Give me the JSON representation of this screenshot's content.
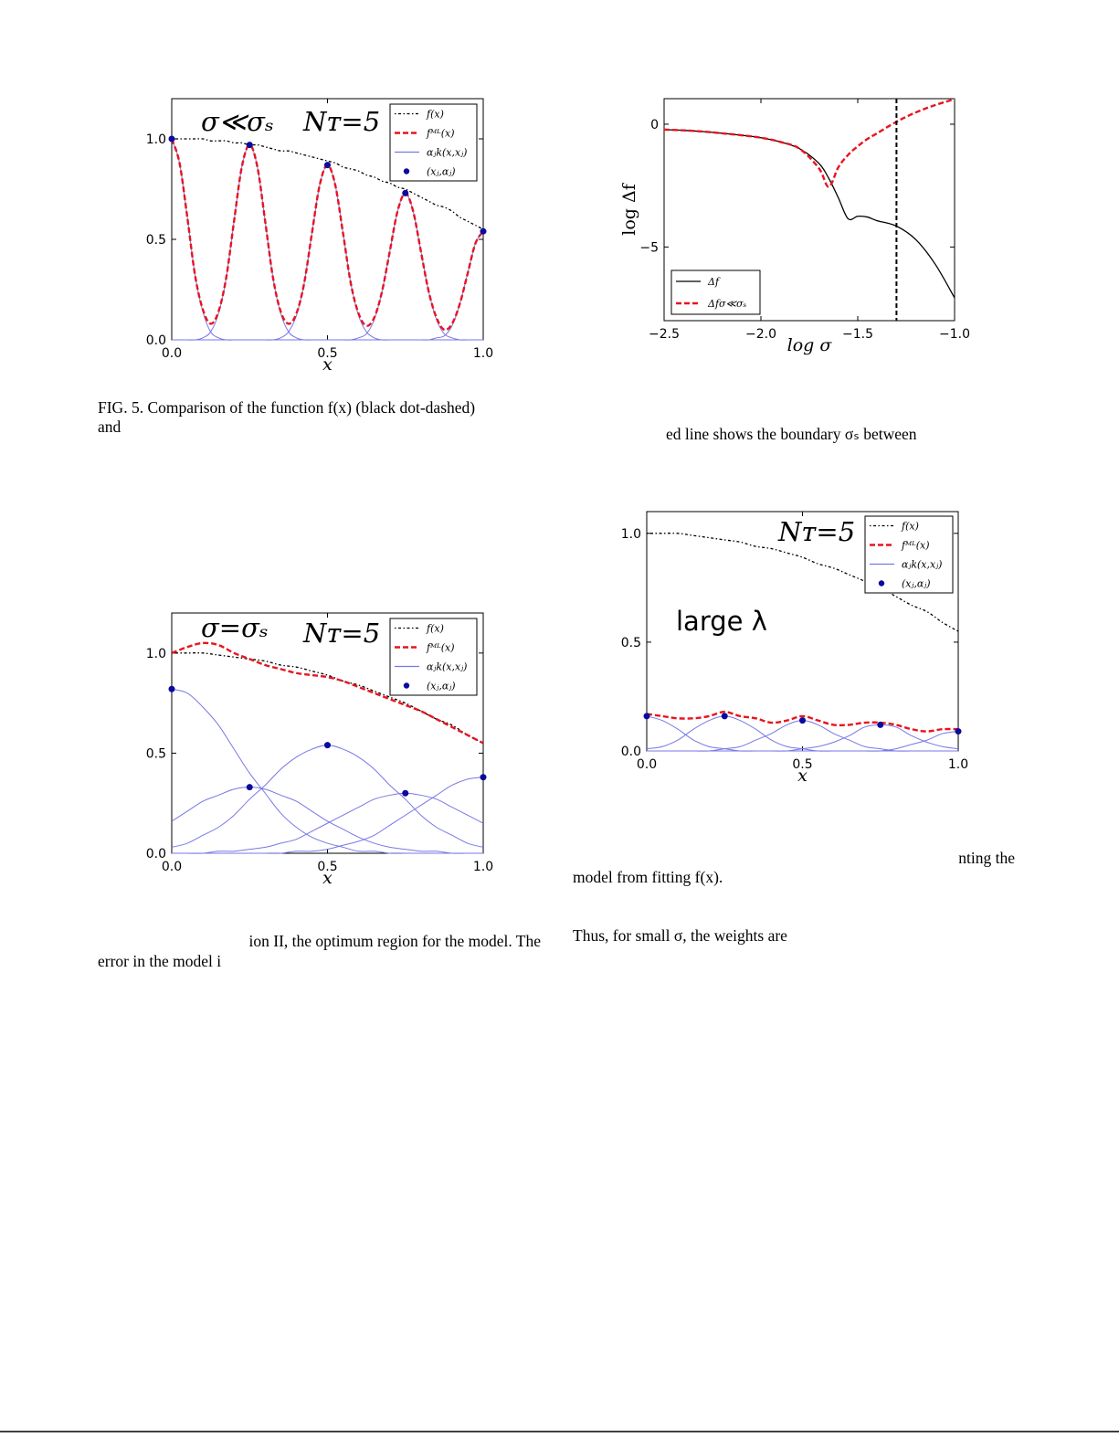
{
  "chart_data": [
    {
      "type": "line",
      "xlabel": "x",
      "xlim": [
        0,
        1
      ],
      "ylim": [
        0,
        1.2
      ],
      "xticks": [
        {
          "value": 0,
          "label": "0.0"
        },
        {
          "value": 0.5,
          "label": "0.5"
        },
        {
          "value": 1,
          "label": "1.0"
        }
      ],
      "yticks": [
        {
          "value": 0,
          "label": "0.0"
        },
        {
          "value": 0.5,
          "label": "0.5"
        },
        {
          "value": 1,
          "label": "1.0"
        }
      ],
      "annotations": [
        "σ≪σₛ",
        "Nᴛ=5"
      ],
      "legend": "upper right",
      "x": [
        0,
        0.025,
        0.05,
        0.075,
        0.1,
        0.125,
        0.15,
        0.175,
        0.2,
        0.225,
        0.25,
        0.275,
        0.3,
        0.325,
        0.35,
        0.375,
        0.4,
        0.425,
        0.45,
        0.475,
        0.5,
        0.525,
        0.55,
        0.575,
        0.6,
        0.625,
        0.65,
        0.675,
        0.7,
        0.725,
        0.75,
        0.775,
        0.8,
        0.825,
        0.85,
        0.875,
        0.9,
        0.925,
        0.95,
        0.975,
        1
      ],
      "series": [
        {
          "name": "f(x)",
          "color": "#000000",
          "style": "dotted",
          "values": [
            1,
            1,
            1,
            1,
            1,
            0.99,
            0.99,
            0.99,
            0.98,
            0.98,
            0.97,
            0.97,
            0.96,
            0.95,
            0.94,
            0.94,
            0.93,
            0.92,
            0.91,
            0.9,
            0.89,
            0.88,
            0.86,
            0.85,
            0.84,
            0.82,
            0.81,
            0.79,
            0.78,
            0.76,
            0.75,
            0.73,
            0.71,
            0.69,
            0.67,
            0.66,
            0.64,
            0.61,
            0.59,
            0.57,
            0.55
          ]
        },
        {
          "name": "fᴹᴸ(x)",
          "color": "#e8141e",
          "style": "dashed",
          "values": [
            1,
            0.88,
            0.61,
            0.32,
            0.15,
            0.08,
            0.14,
            0.31,
            0.59,
            0.86,
            0.97,
            0.86,
            0.59,
            0.31,
            0.14,
            0.08,
            0.13,
            0.28,
            0.53,
            0.77,
            0.87,
            0.77,
            0.53,
            0.28,
            0.13,
            0.07,
            0.11,
            0.24,
            0.44,
            0.64,
            0.73,
            0.64,
            0.44,
            0.24,
            0.11,
            0.05,
            0.08,
            0.18,
            0.33,
            0.48,
            0.54
          ]
        },
        {
          "name": "αⱼk(x,xⱼ)",
          "color": "#7777e6",
          "style": "solid",
          "curves": [
            [
              1,
              0.88,
              0.61,
              0.32,
              0.14,
              0.04,
              0.01,
              0,
              0,
              0,
              0,
              0,
              0,
              0,
              0,
              0,
              0,
              0,
              0,
              0,
              0,
              0,
              0,
              0,
              0,
              0,
              0,
              0,
              0,
              0,
              0,
              0,
              0,
              0,
              0,
              0,
              0,
              0,
              0,
              0,
              0
            ],
            [
              0,
              0,
              0,
              0,
              0.01,
              0.04,
              0.13,
              0.31,
              0.59,
              0.86,
              0.97,
              0.86,
              0.59,
              0.31,
              0.13,
              0.04,
              0.01,
              0,
              0,
              0,
              0,
              0,
              0,
              0,
              0,
              0,
              0,
              0,
              0,
              0,
              0,
              0,
              0,
              0,
              0,
              0,
              0,
              0,
              0,
              0,
              0
            ],
            [
              0,
              0,
              0,
              0,
              0,
              0,
              0,
              0,
              0,
              0,
              0,
              0,
              0,
              0,
              0.01,
              0.04,
              0.12,
              0.28,
              0.53,
              0.77,
              0.87,
              0.77,
              0.53,
              0.28,
              0.12,
              0.04,
              0.01,
              0,
              0,
              0,
              0,
              0,
              0,
              0,
              0,
              0,
              0,
              0,
              0,
              0,
              0
            ],
            [
              0,
              0,
              0,
              0,
              0,
              0,
              0,
              0,
              0,
              0,
              0,
              0,
              0,
              0,
              0,
              0,
              0,
              0,
              0,
              0,
              0,
              0,
              0,
              0,
              0.01,
              0.03,
              0.1,
              0.24,
              0.44,
              0.64,
              0.73,
              0.64,
              0.44,
              0.24,
              0.1,
              0.03,
              0.01,
              0,
              0,
              0,
              0
            ],
            [
              0,
              0,
              0,
              0,
              0,
              0,
              0,
              0,
              0,
              0,
              0,
              0,
              0,
              0,
              0,
              0,
              0,
              0,
              0,
              0,
              0,
              0,
              0,
              0,
              0,
              0,
              0,
              0,
              0,
              0,
              0,
              0,
              0,
              0,
              0.01,
              0.02,
              0.07,
              0.18,
              0.33,
              0.48,
              0.54
            ]
          ]
        },
        {
          "name": "(xⱼ,αⱼ)",
          "color": "#0a0a9e",
          "style": "points",
          "x": [
            0,
            0.25,
            0.5,
            0.75,
            1
          ],
          "values": [
            1,
            0.97,
            0.87,
            0.73,
            0.54
          ]
        }
      ]
    },
    {
      "type": "line",
      "xlabel": "log σ",
      "ylabel": "log Δf",
      "xlim": [
        -2.5,
        -1
      ],
      "ylim": [
        -8,
        1.04
      ],
      "xticks": [
        {
          "value": -2.5,
          "label": "−2.5"
        },
        {
          "value": -2,
          "label": "−2.0"
        },
        {
          "value": -1.5,
          "label": "−1.5"
        },
        {
          "value": -1,
          "label": "−1.0"
        }
      ],
      "yticks": [
        {
          "value": -5,
          "label": "−5"
        },
        0
      ],
      "vline": -1.3,
      "legend": "lower left",
      "x": [
        -2.5,
        -2.4,
        -2.3,
        -2.2,
        -2.1,
        -2,
        -1.9,
        -1.8,
        -1.7,
        -1.65,
        -1.6,
        -1.55,
        -1.5,
        -1.45,
        -1.4,
        -1.3,
        -1.2,
        -1.1,
        -1
      ],
      "series": [
        {
          "name": "Δf",
          "color": "#000000",
          "style": "solid",
          "values": [
            -0.22,
            -0.25,
            -0.3,
            -0.37,
            -0.45,
            -0.55,
            -0.72,
            -1,
            -1.6,
            -2.2,
            -3,
            -3.85,
            -3.75,
            -3.78,
            -3.93,
            -4.15,
            -4.7,
            -5.7,
            -7.07
          ]
        },
        {
          "name": "Δfσ≪σₛ",
          "color": "#e8141e",
          "style": "dashed",
          "values": [
            -0.22,
            -0.25,
            -0.3,
            -0.37,
            -0.45,
            -0.55,
            -0.72,
            -1,
            -1.8,
            -2.55,
            -1.75,
            -1.25,
            -0.9,
            -0.6,
            -0.37,
            0.1,
            0.48,
            0.78,
            1.02
          ]
        }
      ]
    },
    {
      "type": "line",
      "xlabel": "x",
      "xlim": [
        0,
        1
      ],
      "ylim": [
        0,
        1.2
      ],
      "xticks": [
        {
          "value": 0,
          "label": "0.0"
        },
        {
          "value": 0.5,
          "label": "0.5"
        },
        {
          "value": 1,
          "label": "1.0"
        }
      ],
      "yticks": [
        {
          "value": 0,
          "label": "0.0"
        },
        {
          "value": 0.5,
          "label": "0.5"
        },
        {
          "value": 1,
          "label": "1.0"
        }
      ],
      "annotations": [
        "σ=σₛ",
        "Nᴛ=5"
      ],
      "legend": "upper right",
      "x": [
        0,
        0.05,
        0.1,
        0.15,
        0.2,
        0.25,
        0.3,
        0.35,
        0.4,
        0.45,
        0.5,
        0.55,
        0.6,
        0.65,
        0.7,
        0.75,
        0.8,
        0.85,
        0.9,
        0.95,
        1
      ],
      "series": [
        {
          "name": "f(x)",
          "color": "#000000",
          "style": "dotted",
          "values": [
            1,
            1,
            1,
            0.99,
            0.98,
            0.97,
            0.96,
            0.94,
            0.93,
            0.91,
            0.89,
            0.86,
            0.84,
            0.81,
            0.78,
            0.75,
            0.71,
            0.67,
            0.64,
            0.59,
            0.55
          ]
        },
        {
          "name": "fᴹᴸ(x)",
          "color": "#e8141e",
          "style": "dashed",
          "values": [
            1,
            1.03,
            1.05,
            1.04,
            1,
            0.97,
            0.94,
            0.92,
            0.9,
            0.89,
            0.88,
            0.86,
            0.83,
            0.8,
            0.77,
            0.74,
            0.71,
            0.67,
            0.63,
            0.59,
            0.55
          ]
        },
        {
          "name": "αⱼk(x,xⱼ)",
          "color": "#7777e6",
          "style": "solid",
          "curves": [
            [
              0.82,
              0.8,
              0.73,
              0.64,
              0.52,
              0.4,
              0.3,
              0.2,
              0.13,
              0.08,
              0.05,
              0.03,
              0.01,
              0.01,
              0,
              0,
              0,
              0,
              0,
              0,
              0
            ],
            [
              0.16,
              0.21,
              0.26,
              0.29,
              0.32,
              0.33,
              0.32,
              0.29,
              0.26,
              0.21,
              0.16,
              0.12,
              0.08,
              0.05,
              0.03,
              0.02,
              0.01,
              0.01,
              0,
              0,
              0
            ],
            [
              0.03,
              0.05,
              0.09,
              0.13,
              0.19,
              0.27,
              0.34,
              0.42,
              0.48,
              0.52,
              0.54,
              0.52,
              0.48,
              0.42,
              0.34,
              0.27,
              0.19,
              0.13,
              0.09,
              0.05,
              0.03
            ],
            [
              0,
              0,
              0,
              0.01,
              0.01,
              0.02,
              0.03,
              0.05,
              0.07,
              0.11,
              0.15,
              0.19,
              0.23,
              0.27,
              0.29,
              0.3,
              0.29,
              0.27,
              0.23,
              0.19,
              0.15
            ],
            [
              0,
              0,
              0,
              0,
              0,
              0,
              0,
              0,
              0.01,
              0.01,
              0.02,
              0.04,
              0.06,
              0.09,
              0.14,
              0.19,
              0.24,
              0.29,
              0.34,
              0.37,
              0.38
            ]
          ]
        },
        {
          "name": "(xⱼ,αⱼ)",
          "color": "#0a0a9e",
          "style": "points",
          "x": [
            0,
            0.25,
            0.5,
            0.75,
            1
          ],
          "values": [
            0.82,
            0.33,
            0.54,
            0.3,
            0.38
          ]
        }
      ]
    },
    {
      "type": "line",
      "xlabel": "x",
      "xlim": [
        0,
        1
      ],
      "ylim": [
        0,
        1.1
      ],
      "xticks": [
        {
          "value": 0,
          "label": "0.0"
        },
        {
          "value": 0.5,
          "label": "0.5"
        },
        {
          "value": 1,
          "label": "1.0"
        }
      ],
      "yticks": [
        {
          "value": 0,
          "label": "0.0"
        },
        {
          "value": 0.5,
          "label": "0.5"
        },
        {
          "value": 1,
          "label": "1.0"
        }
      ],
      "annotations": [
        "Nᴛ=5",
        "large λ"
      ],
      "legend": "upper right",
      "x": [
        0,
        0.05,
        0.1,
        0.15,
        0.2,
        0.25,
        0.3,
        0.35,
        0.4,
        0.45,
        0.5,
        0.55,
        0.6,
        0.65,
        0.7,
        0.75,
        0.8,
        0.85,
        0.9,
        0.95,
        1
      ],
      "series": [
        {
          "name": "f(x)",
          "color": "#000000",
          "style": "dotted",
          "values": [
            1,
            1,
            1,
            0.99,
            0.98,
            0.97,
            0.96,
            0.94,
            0.93,
            0.91,
            0.89,
            0.86,
            0.84,
            0.81,
            0.78,
            0.75,
            0.71,
            0.67,
            0.64,
            0.59,
            0.55
          ]
        },
        {
          "name": "fᴹᴸ(x)",
          "color": "#e8141e",
          "style": "dashed",
          "values": [
            0.17,
            0.16,
            0.15,
            0.15,
            0.16,
            0.18,
            0.16,
            0.15,
            0.13,
            0.14,
            0.16,
            0.14,
            0.12,
            0.12,
            0.13,
            0.13,
            0.12,
            0.1,
            0.09,
            0.1,
            0.1
          ]
        },
        {
          "name": "αⱼk(x,xⱼ)",
          "color": "#7777e6",
          "style": "solid",
          "curves": [
            [
              0.16,
              0.14,
              0.1,
              0.05,
              0.02,
              0.01,
              0,
              0,
              0,
              0,
              0,
              0,
              0,
              0,
              0,
              0,
              0,
              0,
              0,
              0,
              0
            ],
            [
              0.01,
              0.02,
              0.05,
              0.1,
              0.14,
              0.16,
              0.14,
              0.1,
              0.05,
              0.02,
              0.01,
              0,
              0,
              0,
              0,
              0,
              0,
              0,
              0,
              0,
              0
            ],
            [
              0,
              0,
              0,
              0,
              0,
              0.01,
              0.02,
              0.05,
              0.08,
              0.12,
              0.14,
              0.12,
              0.08,
              0.05,
              0.02,
              0.01,
              0,
              0,
              0,
              0,
              0
            ],
            [
              0,
              0,
              0,
              0,
              0,
              0,
              0,
              0,
              0,
              0,
              0.01,
              0.02,
              0.04,
              0.07,
              0.11,
              0.12,
              0.11,
              0.07,
              0.04,
              0.02,
              0.01
            ],
            [
              0,
              0,
              0,
              0,
              0,
              0,
              0,
              0,
              0,
              0,
              0,
              0,
              0,
              0,
              0,
              0,
              0.01,
              0.03,
              0.05,
              0.08,
              0.09
            ]
          ]
        },
        {
          "name": "(xⱼ,αⱼ)",
          "color": "#0a0a9e",
          "style": "points",
          "x": [
            0,
            0.25,
            0.5,
            0.75,
            1
          ],
          "values": [
            0.16,
            0.16,
            0.14,
            0.12,
            0.09
          ]
        }
      ]
    }
  ],
  "text": [
    "FIG. 5.  Comparison of the function f(x) (black dot-dashed)",
    "and",
    "ed line shows the boundary σₛ between",
    "nting the",
    "model from fitting f(x).",
    "ion II, the optimum region for the model.  The",
    "error in the model i",
    "Thus, for small σ, the weights are"
  ]
}
